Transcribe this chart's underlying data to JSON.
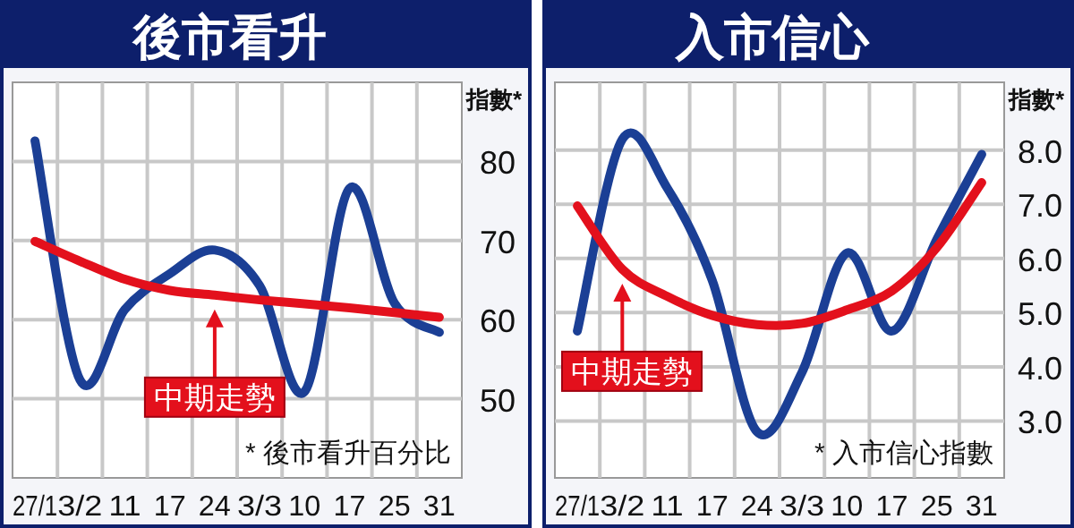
{
  "chart_data": [
    {
      "type": "line",
      "title": "後市看升",
      "ylabel": "指數*",
      "categories": [
        "27/1",
        "3/2",
        "11",
        "17",
        "24",
        "3/3",
        "10",
        "17",
        "25",
        "31"
      ],
      "series": [
        {
          "color": "#1b3f95",
          "values": [
            82.6,
            52.4,
            61.3,
            65.8,
            68.8,
            64.3,
            50.9,
            76.6,
            62.1,
            58.4
          ]
        },
        {
          "color": "#e3101c",
          "values": [
            69.9,
            67.4,
            65.1,
            63.7,
            63.1,
            62.5,
            62.0,
            61.5,
            60.9,
            60.3
          ]
        }
      ],
      "ylim": [
        40,
        90
      ],
      "yticks": [
        50,
        60,
        70,
        80
      ],
      "grid": true,
      "annotations": [
        {
          "text": "中期走勢",
          "x": "24",
          "y": 63.1
        },
        "* 後市看升百分比"
      ]
    },
    {
      "type": "line",
      "title": "入市信心",
      "ylabel": "指數*",
      "categories": [
        "27/1",
        "3/2",
        "11",
        "17",
        "24",
        "3/3",
        "10",
        "17",
        "25",
        "31"
      ],
      "series": [
        {
          "color": "#1b3f95",
          "values": [
            4.66,
            8.2,
            7.3,
            5.6,
            2.8,
            3.9,
            6.1,
            4.66,
            6.35,
            7.92
          ]
        },
        {
          "color": "#e3101c",
          "values": [
            6.97,
            5.8,
            5.3,
            4.95,
            4.78,
            4.8,
            5.05,
            5.4,
            6.2,
            7.4
          ]
        }
      ],
      "ylim": [
        1.95,
        9.25
      ],
      "yticks": [
        {
          "value": 3,
          "label": "3.0"
        },
        {
          "value": 4,
          "label": "4.0"
        },
        {
          "value": 5,
          "label": "5.0"
        },
        {
          "value": 6,
          "label": "6.0"
        },
        {
          "value": 7,
          "label": "7.0"
        },
        {
          "value": 8,
          "label": "8.0"
        }
      ],
      "grid": true,
      "annotations": [
        {
          "text": "中期走勢",
          "x": "3/2",
          "y": 5.8
        },
        "* 入市信心指數"
      ]
    }
  ]
}
